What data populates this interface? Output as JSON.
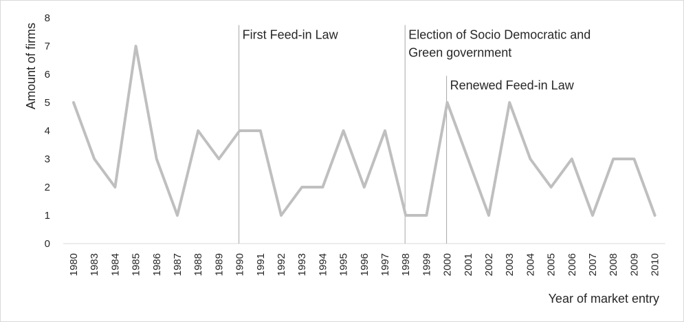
{
  "chart_data": {
    "type": "line",
    "x": [
      "1980",
      "1983",
      "1984",
      "1985",
      "1986",
      "1987",
      "1988",
      "1989",
      "1990",
      "1991",
      "1992",
      "1993",
      "1994",
      "1995",
      "1996",
      "1997",
      "1998",
      "1999",
      "2000",
      "2001",
      "2002",
      "2003",
      "2004",
      "2005",
      "2006",
      "2007",
      "2008",
      "2009",
      "2010"
    ],
    "series": [
      {
        "values": [
          5,
          3,
          2,
          7,
          3,
          1,
          4,
          3,
          4,
          4,
          1,
          2,
          2,
          4,
          2,
          4,
          1,
          1,
          5,
          3,
          1,
          5,
          3,
          2,
          3,
          1,
          3,
          3,
          1
        ]
      }
    ],
    "ylabel": "Amount of firms",
    "xlabel": "Year of market entry",
    "ylim": [
      0,
      8
    ],
    "yticks": [
      "0",
      "1",
      "2",
      "3",
      "4",
      "5",
      "6",
      "7",
      "8"
    ],
    "grid": false,
    "line_color": "#bfbfbf",
    "marker_line_color": "#a6a6a6",
    "annotations": [
      {
        "year": "1990",
        "lines": [
          "First Feed-in Law"
        ],
        "top": 7.6
      },
      {
        "year": "1998",
        "lines": [
          "Election of Socio Democratic and",
          "Green government"
        ],
        "top": 7.6
      },
      {
        "year": "2000",
        "lines": [
          "Renewed Feed-in Law"
        ],
        "top": 5.8
      }
    ]
  }
}
